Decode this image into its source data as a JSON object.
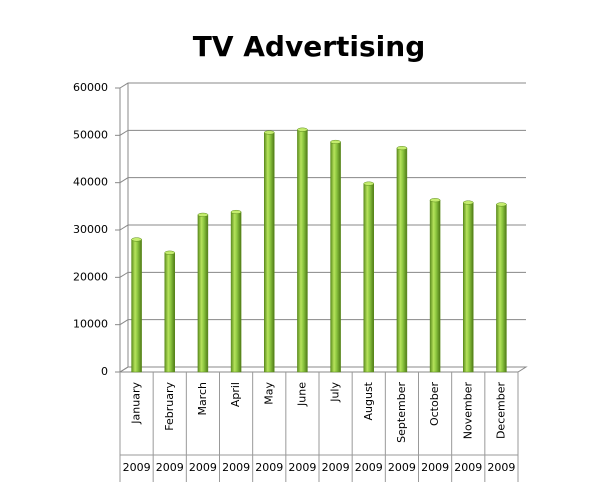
{
  "chart_data": {
    "type": "bar",
    "title": "TV Advertising",
    "categories": [
      "January",
      "February",
      "March",
      "April",
      "May",
      "June",
      "July",
      "August",
      "September",
      "October",
      "November",
      "December"
    ],
    "groups": [
      "2009",
      "2009",
      "2009",
      "2009",
      "2009",
      "2009",
      "2009",
      "2009",
      "2009",
      "2009",
      "2009",
      "2009"
    ],
    "values": [
      28000,
      25200,
      33200,
      33800,
      50600,
      51200,
      48600,
      39800,
      47300,
      36300,
      35800,
      35400
    ],
    "color": "#8cc63f",
    "ylim": [
      0,
      60000
    ],
    "yticks": [
      0,
      10000,
      20000,
      30000,
      40000,
      50000,
      60000
    ],
    "grid": true
  }
}
